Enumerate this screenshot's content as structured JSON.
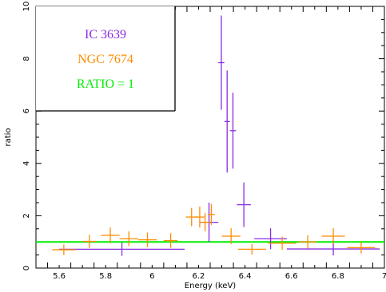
{
  "chart_data": {
    "type": "scatter",
    "xlabel": "Energy (keV)",
    "ylabel": "ratio",
    "xlim": [
      5.5,
      7.0
    ],
    "ylim": [
      0,
      10
    ],
    "x_ticks": [
      "5.6",
      "5.8",
      "6",
      "6.2",
      "6.4",
      "6.6",
      "6.8",
      "7"
    ],
    "y_ticks": [
      "0",
      "2",
      "4",
      "6",
      "8",
      "10"
    ],
    "series": [
      {
        "name": "IC 3639",
        "color": "#8a2be2",
        "points": [
          {
            "x": 5.87,
            "xerr": 0.27,
            "y": 0.72,
            "yerr": 0.25
          },
          {
            "x": 6.245,
            "xerr": 0.04,
            "y": 1.75,
            "yerr": 0.75
          },
          {
            "x": 6.298,
            "xerr": 0.013,
            "y": 7.85,
            "yerr": 1.8
          },
          {
            "x": 6.323,
            "xerr": 0.012,
            "y": 5.6,
            "yerr": 1.95
          },
          {
            "x": 6.348,
            "xerr": 0.013,
            "y": 5.25,
            "yerr": 1.45
          },
          {
            "x": 6.395,
            "xerr": 0.03,
            "y": 2.42,
            "yerr": 0.85
          },
          {
            "x": 6.51,
            "xerr": 0.07,
            "y": 1.12,
            "yerr": 0.4
          },
          {
            "x": 6.78,
            "xerr": 0.2,
            "y": 0.73,
            "yerr": 0.25
          }
        ]
      },
      {
        "name": "NGC 7674",
        "color": "#ff8c00",
        "points": [
          {
            "x": 5.62,
            "xerr": 0.05,
            "y": 0.7,
            "yerr": 0.2
          },
          {
            "x": 5.73,
            "xerr": 0.03,
            "y": 1.02,
            "yerr": 0.25
          },
          {
            "x": 5.82,
            "xerr": 0.04,
            "y": 1.25,
            "yerr": 0.3
          },
          {
            "x": 5.9,
            "xerr": 0.04,
            "y": 1.12,
            "yerr": 0.28
          },
          {
            "x": 5.98,
            "xerr": 0.04,
            "y": 1.08,
            "yerr": 0.28
          },
          {
            "x": 6.08,
            "xerr": 0.03,
            "y": 1.05,
            "yerr": 0.28
          },
          {
            "x": 6.17,
            "xerr": 0.025,
            "y": 1.95,
            "yerr": 0.35
          },
          {
            "x": 6.205,
            "xerr": 0.02,
            "y": 1.95,
            "yerr": 0.4
          },
          {
            "x": 6.228,
            "xerr": 0.02,
            "y": 1.75,
            "yerr": 0.35
          },
          {
            "x": 6.255,
            "xerr": 0.015,
            "y": 2.05,
            "yerr": 0.4
          },
          {
            "x": 6.34,
            "xerr": 0.04,
            "y": 1.22,
            "yerr": 0.3
          },
          {
            "x": 6.43,
            "xerr": 0.06,
            "y": 0.72,
            "yerr": 0.2
          },
          {
            "x": 6.56,
            "xerr": 0.06,
            "y": 0.95,
            "yerr": 0.25
          },
          {
            "x": 6.67,
            "xerr": 0.04,
            "y": 1.0,
            "yerr": 0.25
          },
          {
            "x": 6.78,
            "xerr": 0.05,
            "y": 1.22,
            "yerr": 0.3
          },
          {
            "x": 6.9,
            "xerr": 0.06,
            "y": 0.78,
            "yerr": 0.22
          }
        ]
      }
    ],
    "reference_line": {
      "y": 1,
      "color": "#00ee00"
    },
    "legend": {
      "placement": "top-left",
      "entries": [
        {
          "text": "IC 3639",
          "color": "#8a2be2"
        },
        {
          "text": "NGC 7674",
          "color": "#ff8c00"
        },
        {
          "text": "RATIO = 1",
          "color": "#00ee00"
        }
      ]
    }
  }
}
